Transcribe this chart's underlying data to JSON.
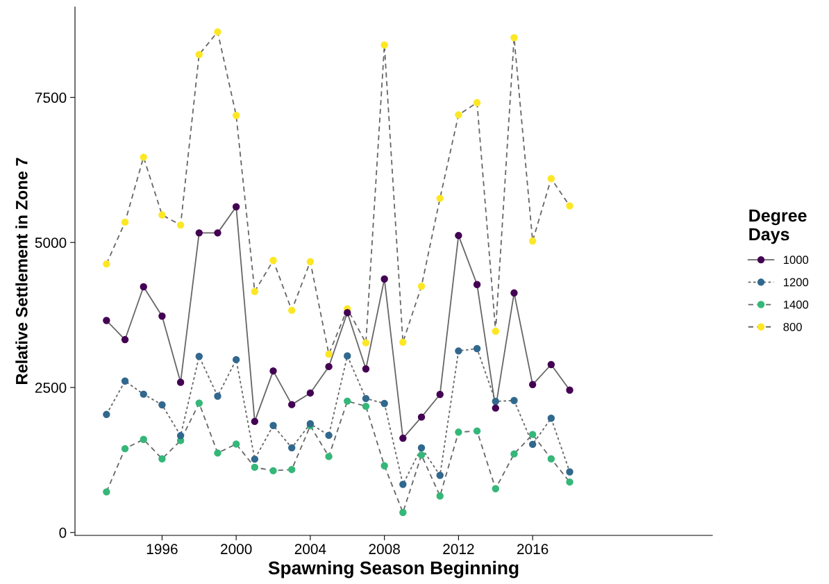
{
  "chart_data": {
    "type": "line",
    "xlabel": "Spawning Season Beginning",
    "ylabel": "Relative Settlement in Zone 7",
    "legend_title": "Degree\nDays",
    "x": [
      1993,
      1994,
      1995,
      1996,
      1997,
      1998,
      1999,
      2000,
      2001,
      2002,
      2003,
      2004,
      2005,
      2006,
      2007,
      2008,
      2009,
      2010,
      2011,
      2012,
      2013,
      2014,
      2015,
      2016,
      2017,
      2018
    ],
    "xlim": [
      1991.3,
      2025.7
    ],
    "xticks": [
      1996,
      2000,
      2004,
      2008,
      2012,
      2016
    ],
    "ylim": [
      -50,
      9060
    ],
    "yticks": [
      0,
      2500,
      5000,
      7500
    ],
    "grid": false,
    "legend": "right",
    "marker": "circle",
    "series": [
      {
        "name": "1000",
        "color": "#440154",
        "line_style": "solid",
        "values": [
          3655,
          3325,
          4235,
          3730,
          2590,
          5165,
          5165,
          5615,
          1915,
          2785,
          2205,
          2405,
          2860,
          3790,
          2820,
          4370,
          1625,
          1990,
          2380,
          5120,
          4275,
          2145,
          4130,
          2550,
          2895,
          2455
        ]
      },
      {
        "name": "1200",
        "color": "#31688e",
        "line_style": "dotted",
        "values": [
          2035,
          2610,
          2385,
          2200,
          1670,
          3035,
          2350,
          2980,
          1265,
          1845,
          1460,
          1875,
          1675,
          3045,
          2310,
          2225,
          830,
          1460,
          985,
          3130,
          3170,
          2260,
          2275,
          1520,
          1970,
          1045
        ]
      },
      {
        "name": "1400",
        "color": "#35b779",
        "line_style": "dashed",
        "values": [
          700,
          1445,
          1605,
          1270,
          1585,
          2230,
          1370,
          1525,
          1125,
          1065,
          1085,
          1840,
          1310,
          2265,
          2175,
          1150,
          345,
          1335,
          630,
          1730,
          1750,
          755,
          1355,
          1690,
          1270,
          870
        ]
      },
      {
        "name": "800",
        "color": "#fde725",
        "line_style": "dashed",
        "values": [
          4630,
          5350,
          6470,
          5475,
          5300,
          8240,
          8630,
          7190,
          4155,
          4690,
          3830,
          4670,
          3075,
          3855,
          3270,
          8405,
          3280,
          4245,
          5760,
          7200,
          7410,
          3470,
          8530,
          5025,
          6100,
          5630
        ]
      }
    ]
  }
}
